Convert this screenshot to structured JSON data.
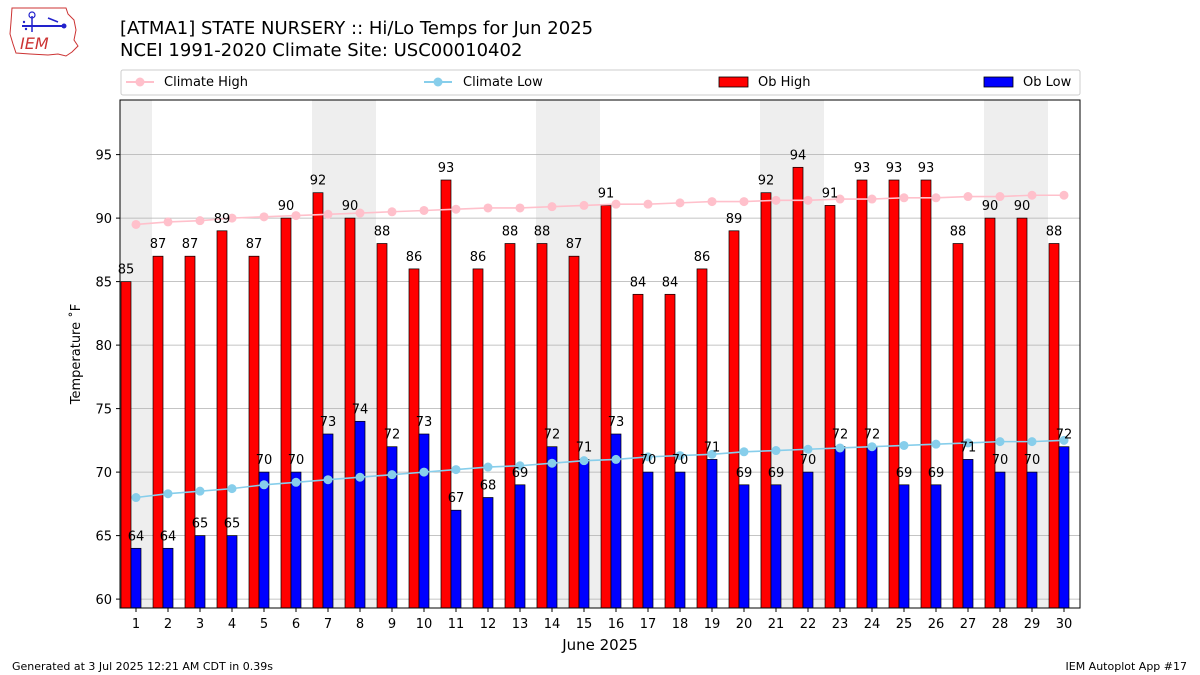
{
  "header": {
    "title_line1": "[ATMA1] STATE NURSERY :: Hi/Lo Temps for Jun 2025",
    "title_line2": "NCEI 1991-2020 Climate Site: USC00010402",
    "logo_text": "IEM"
  },
  "footer": {
    "left": "Generated at 3 Jul 2025 12:21 AM CDT in 0.39s",
    "right": "IEM Autoplot App #17"
  },
  "colors": {
    "ob_high": "#ff0000",
    "ob_low": "#0000ff",
    "climate_high": "#ffc0cb",
    "climate_low": "#87ceeb",
    "weekend_band": "#eeeeee",
    "grid": "#b0b0b0"
  },
  "chart_data": {
    "type": "bar",
    "xlabel": "June 2025",
    "ylabel": "Temperature ˚F",
    "ylim": [
      59.3,
      99.3
    ],
    "yticks": [
      60,
      65,
      70,
      75,
      80,
      85,
      90,
      95
    ],
    "grid": "horizontal",
    "legend_position": "top",
    "categories": [
      "1",
      "2",
      "3",
      "4",
      "5",
      "6",
      "7",
      "8",
      "9",
      "10",
      "11",
      "12",
      "13",
      "14",
      "15",
      "16",
      "17",
      "18",
      "19",
      "20",
      "21",
      "22",
      "23",
      "24",
      "25",
      "26",
      "27",
      "28",
      "29",
      "30"
    ],
    "weekend_days": [
      1,
      7,
      8,
      14,
      15,
      21,
      22,
      28,
      29
    ],
    "series": [
      {
        "name": "Climate High",
        "kind": "line",
        "values": [
          89.5,
          89.7,
          89.8,
          90.0,
          90.1,
          90.2,
          90.3,
          90.4,
          90.5,
          90.6,
          90.7,
          90.8,
          90.8,
          90.9,
          91.0,
          91.1,
          91.1,
          91.2,
          91.3,
          91.3,
          91.4,
          91.4,
          91.5,
          91.5,
          91.6,
          91.6,
          91.7,
          91.7,
          91.8,
          91.8
        ]
      },
      {
        "name": "Climate Low",
        "kind": "line",
        "values": [
          68.0,
          68.3,
          68.5,
          68.7,
          69.0,
          69.2,
          69.4,
          69.6,
          69.8,
          70.0,
          70.2,
          70.4,
          70.5,
          70.7,
          70.9,
          71.0,
          71.2,
          71.3,
          71.4,
          71.6,
          71.7,
          71.8,
          71.9,
          72.0,
          72.1,
          72.2,
          72.3,
          72.4,
          72.4,
          72.5
        ]
      },
      {
        "name": "Ob High",
        "kind": "bar",
        "values": [
          85,
          87,
          87,
          89,
          87,
          90,
          92,
          90,
          88,
          86,
          93,
          86,
          88,
          88,
          87,
          91,
          84,
          84,
          86,
          89,
          92,
          94,
          91,
          93,
          93,
          93,
          88,
          90,
          90,
          88
        ]
      },
      {
        "name": "Ob Low",
        "kind": "bar",
        "values": [
          64,
          64,
          65,
          65,
          70,
          70,
          73,
          74,
          72,
          73,
          67,
          68,
          69,
          72,
          71,
          73,
          70,
          70,
          71,
          69,
          69,
          70,
          72,
          72,
          69,
          69,
          71,
          70,
          70,
          72
        ]
      }
    ]
  }
}
